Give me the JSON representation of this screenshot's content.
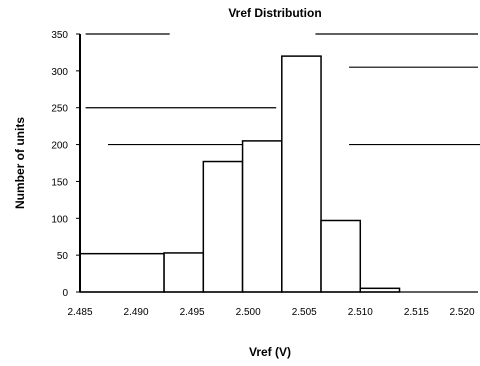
{
  "chart_data": {
    "type": "bar",
    "title": "Vref Distribution",
    "xlabel": "Vref (V)",
    "ylabel": "Number of units",
    "categories": [
      "2.485",
      "2.490",
      "2.495",
      "2.500",
      "2.505",
      "2.510",
      "2.515",
      "2.520"
    ],
    "x_ticks": [
      "2.485",
      "2.490",
      "2.495",
      "2.500",
      "2.505",
      "2.510",
      "2.515",
      "2.520"
    ],
    "bins": [
      {
        "from": 2.485,
        "to": 2.4925,
        "value": 52
      },
      {
        "from": 2.4925,
        "to": 2.496,
        "value": 53
      },
      {
        "from": 2.496,
        "to": 2.4995,
        "value": 177
      },
      {
        "from": 2.4995,
        "to": 2.503,
        "value": 205
      },
      {
        "from": 2.503,
        "to": 2.5065,
        "value": 320
      },
      {
        "from": 2.5065,
        "to": 2.51,
        "value": 97
      },
      {
        "from": 2.51,
        "to": 2.5135,
        "value": 5
      }
    ],
    "y_ticks": [
      0,
      50,
      100,
      150,
      200,
      250,
      300,
      350
    ],
    "xlim": [
      2.485,
      2.5205
    ],
    "ylim": [
      0,
      350
    ],
    "gridlines": [
      {
        "y": 350,
        "x_from": 2.4855,
        "x_to": 2.493
      },
      {
        "y": 350,
        "x_from": 2.506,
        "x_to": 2.5205
      },
      {
        "y": 305,
        "x_from": 2.509,
        "x_to": 2.5205
      },
      {
        "y": 250,
        "x_from": 2.4855,
        "x_to": 2.5025
      },
      {
        "y": 200,
        "x_from": 2.4875,
        "x_to": 2.5025
      },
      {
        "y": 200,
        "x_from": 2.509,
        "x_to": 2.5215
      }
    ],
    "legend": "none"
  }
}
